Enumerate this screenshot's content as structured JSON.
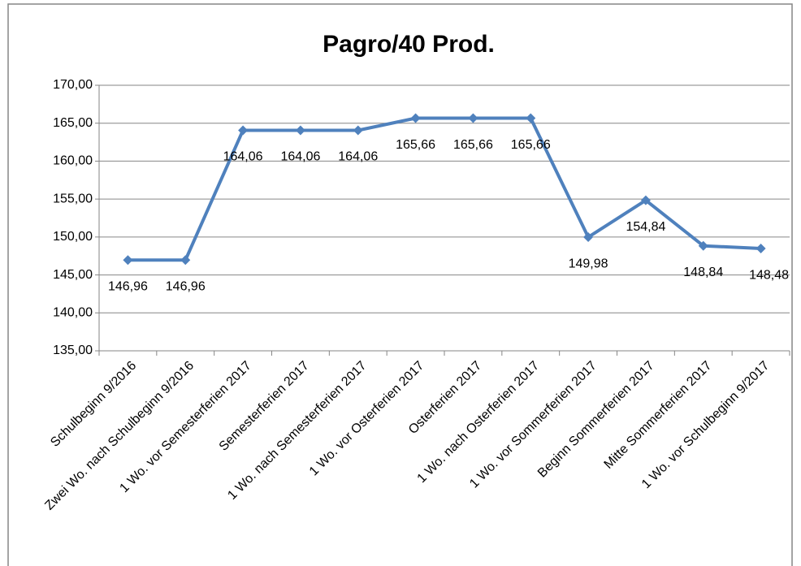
{
  "chart_data": {
    "type": "line",
    "title": "Pagro/40 Prod.",
    "categories": [
      "Schulbeginn 9/2016",
      "Zwei Wo. nach Schulbeginn 9/2016",
      "1 Wo. vor Semesterferien 2017",
      "Semesterferien 2017",
      "1 Wo. nach Semesterferien 2017",
      "1 Wo. vor Osterferien 2017",
      "Osterferien 2017",
      "1 Wo. nach Osterferien 2017",
      "1 Wo. vor Sommerferien 2017",
      "Beginn Sommerferien 2017",
      "Mitte Sommerferien 2017",
      "1 Wo. vor Schulbeginn 9/2017"
    ],
    "values": [
      146.96,
      146.96,
      164.06,
      164.06,
      164.06,
      165.66,
      165.66,
      165.66,
      149.98,
      154.84,
      148.84,
      148.48
    ],
    "value_labels": [
      "146,96",
      "146,96",
      "164,06",
      "164,06",
      "164,06",
      "165,66",
      "165,66",
      "165,66",
      "149,98",
      "154,84",
      "148,84",
      "148,48"
    ],
    "color": "#4f81bd",
    "ylim": [
      135,
      170
    ],
    "yticks": [
      {
        "value": 135,
        "label": "135,00"
      },
      {
        "value": 140,
        "label": "140,00"
      },
      {
        "value": 145,
        "label": "145,00"
      },
      {
        "value": 150,
        "label": "150,00"
      },
      {
        "value": 155,
        "label": "155,00"
      },
      {
        "value": 160,
        "label": "160,00"
      },
      {
        "value": 165,
        "label": "165,00"
      },
      {
        "value": 170,
        "label": "170,00"
      }
    ],
    "grid": true
  }
}
